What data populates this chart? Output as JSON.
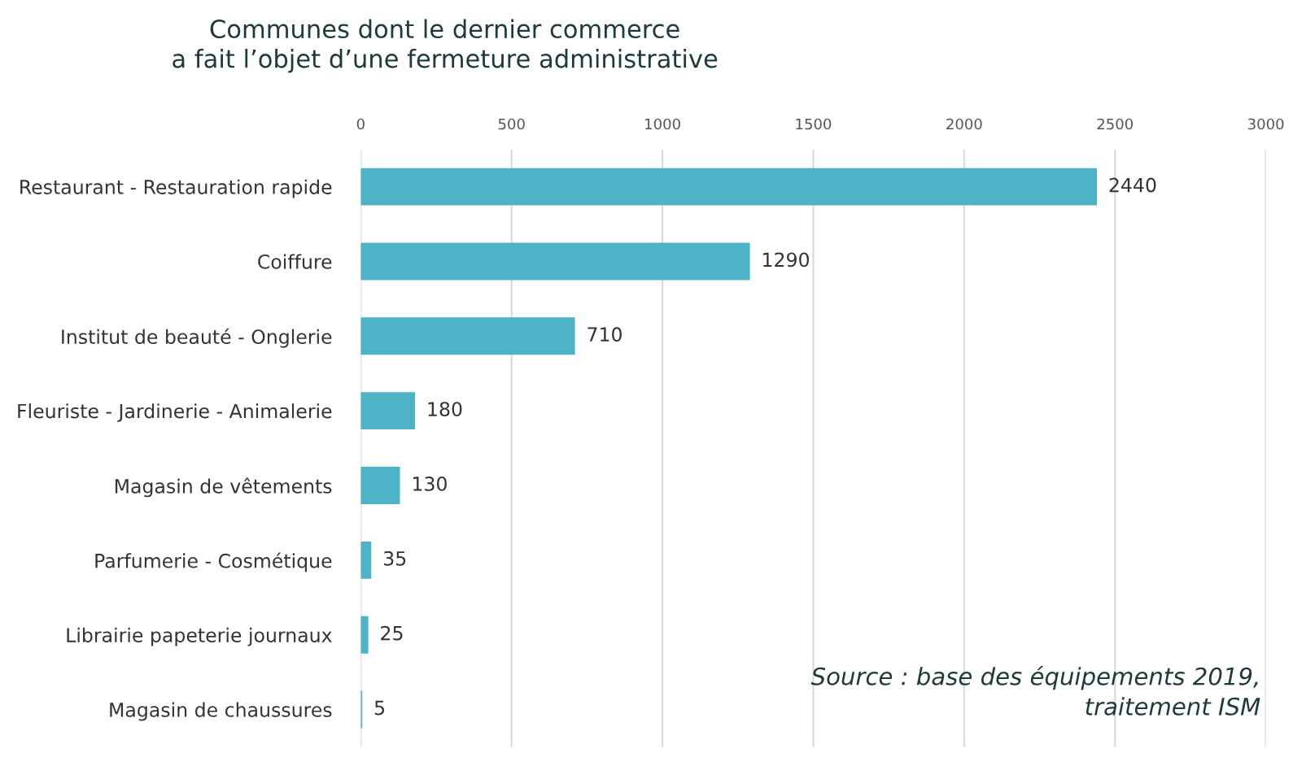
{
  "chart_data": {
    "type": "bar",
    "orientation": "horizontal",
    "title": "Communes dont le dernier commerce\na fait l’objet d’une fermeture administrative",
    "categories": [
      "Restaurant - Restauration rapide",
      "Coiffure",
      "Institut de beauté - Onglerie",
      "Fleuriste - Jardinerie - Animalerie",
      "Magasin de vêtements",
      "Parfumerie - Cosmétique",
      "Librairie papeterie journaux",
      "Magasin de chaussures"
    ],
    "values": [
      2440,
      1290,
      710,
      180,
      130,
      35,
      25,
      5
    ],
    "color": "#4fb3c8",
    "xlim": [
      0,
      3000
    ],
    "xticks": [
      0,
      500,
      1000,
      1500,
      2000,
      2500,
      3000
    ],
    "grid": "x",
    "data_labels": true,
    "legend": false,
    "annotations": [
      "Source : base des équipements 2019,\ntraitement ISM"
    ]
  }
}
